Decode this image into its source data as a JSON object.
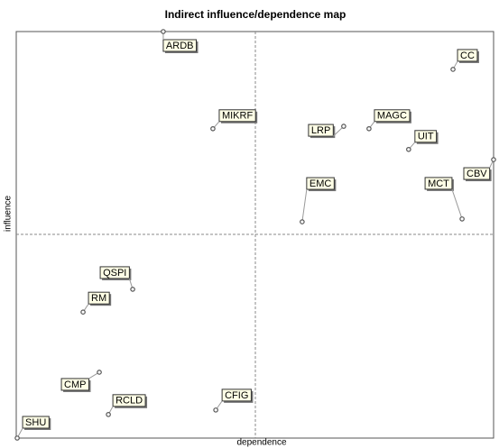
{
  "chart_data": {
    "type": "scatter",
    "title": "Indirect influence/dependence map",
    "x_label": "dependence",
    "y_label": "influence",
    "xlim": [
      0,
      100
    ],
    "ylim": [
      0,
      100
    ],
    "labels": [
      "ARDB",
      "CC",
      "MIKRF",
      "LRP",
      "MAGC",
      "UIT",
      "CBV",
      "EMC",
      "MCT",
      "QSPI",
      "RM",
      "CMP",
      "RCLD",
      "CFIG",
      "SHU"
    ],
    "x": [
      30.8,
      91.5,
      41.2,
      68.6,
      73.9,
      82.2,
      100,
      59.9,
      93.4,
      24.4,
      14.0,
      17.4,
      19.3,
      41.8,
      0.2
    ],
    "y": [
      100,
      90.7,
      76.1,
      76.7,
      76.1,
      71.0,
      68.5,
      53.2,
      53.9,
      36.6,
      31.0,
      16.2,
      5.8,
      6.9,
      0
    ]
  }
}
